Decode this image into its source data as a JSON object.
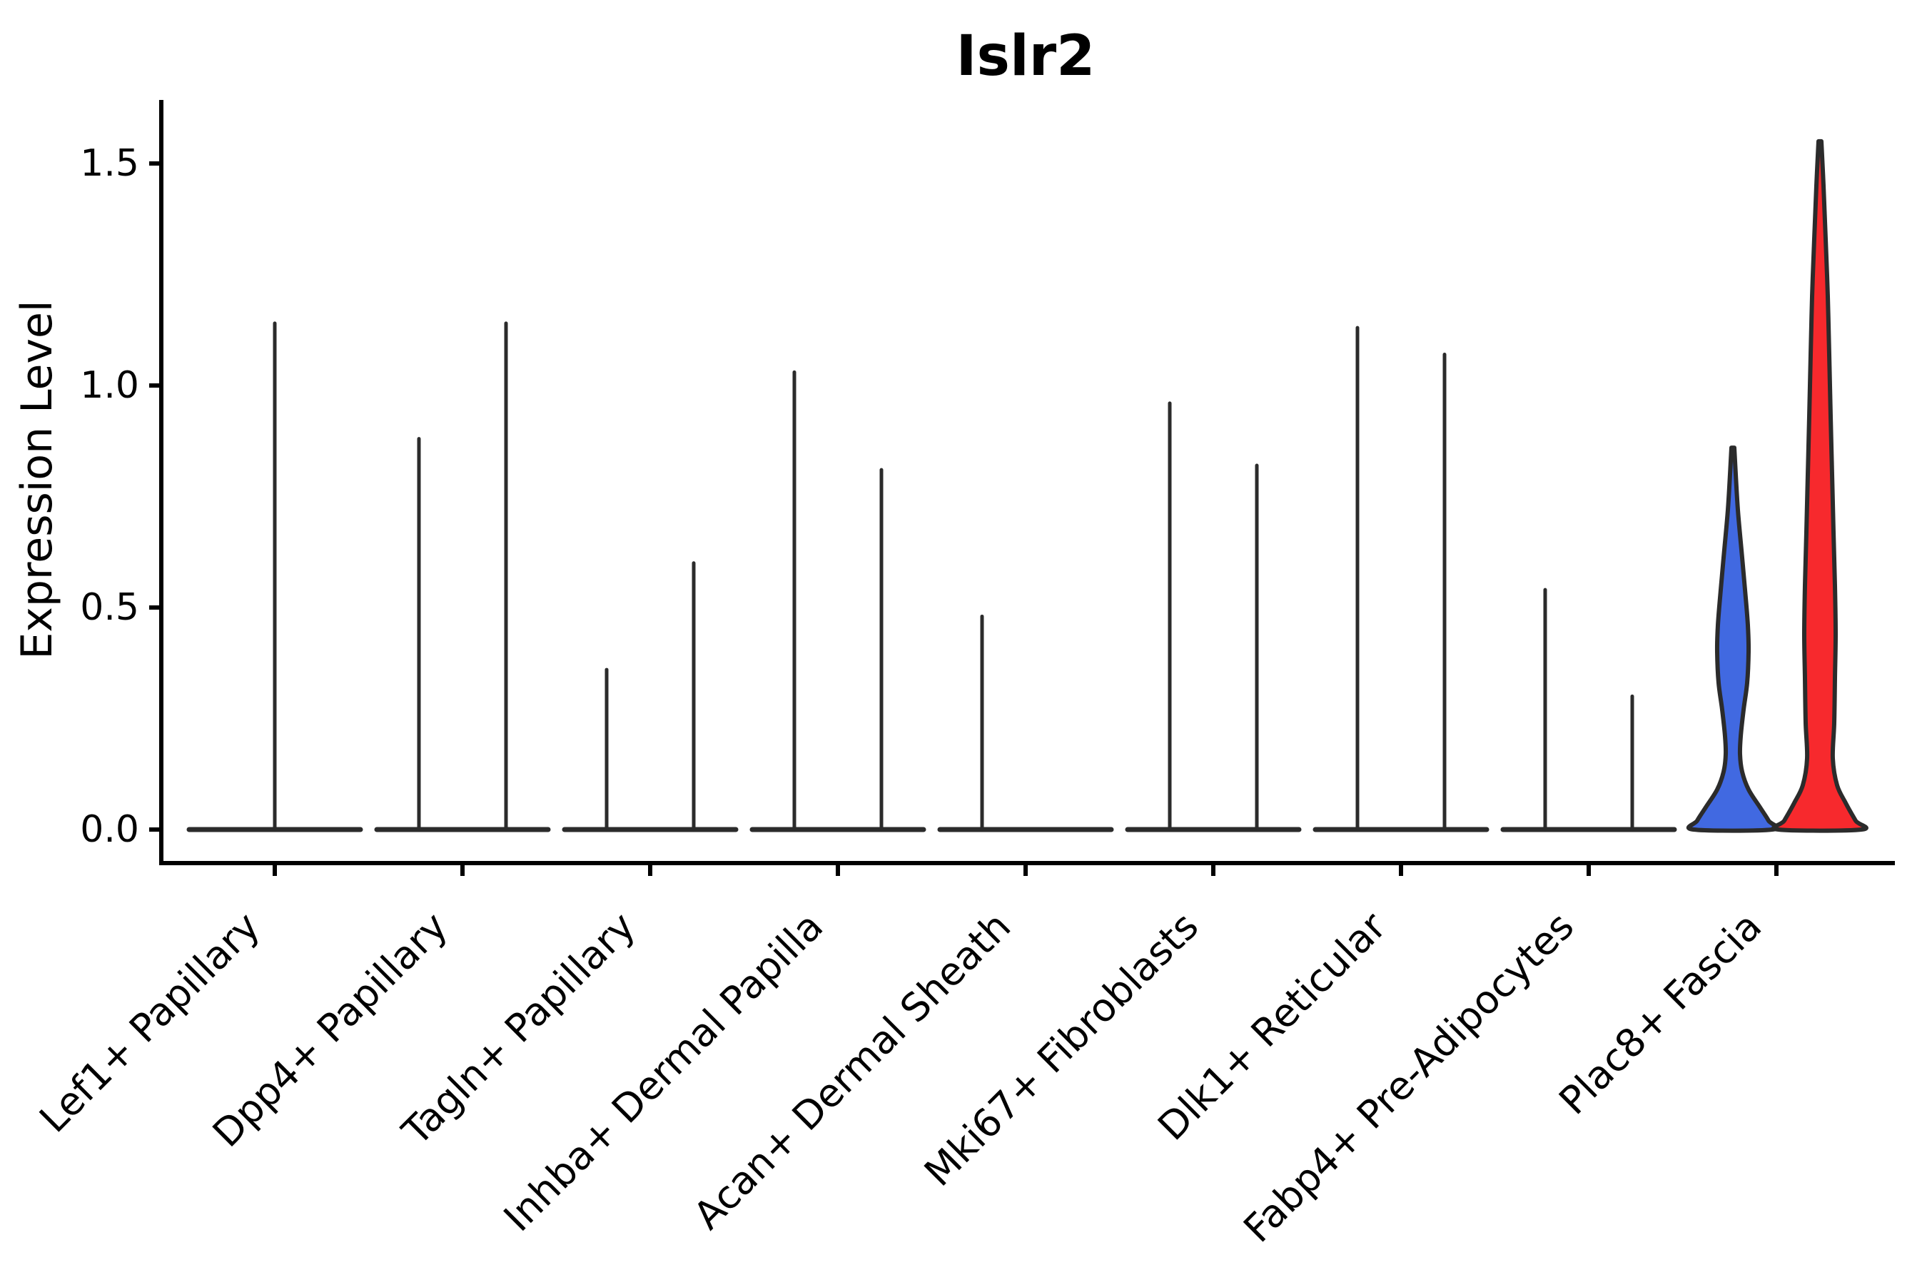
{
  "title": "Islr2",
  "axes": {
    "ylabel": "Expression Level",
    "ytick_labels": [
      "0.0",
      "0.5",
      "1.0",
      "1.5"
    ]
  },
  "colors": {
    "blue_fill": "#4169E1",
    "red_fill": "#F7292D",
    "violin_stroke": "#2b2b2b",
    "axis_color": "#000000"
  },
  "chart_data": {
    "type": "violin",
    "title": "Islr2",
    "xlabel": "",
    "ylabel": "Expression Level",
    "ylim": [
      0,
      1.65
    ],
    "yticks": [
      0,
      0.5,
      1.0,
      1.5
    ],
    "ytick_labels": [
      "0.0",
      "0.5",
      "1.0",
      "1.5"
    ],
    "grid": false,
    "legend": "none",
    "categories": [
      "Lef1+ Papillary",
      "Dpp4+ Papillary",
      "Tagln+ Papillary",
      "Inhba+ Dermal Papilla",
      "Acan+ Dermal Sheath",
      "Mki67+ Fibroblasts",
      "Dlk1+ Reticular",
      "Fabp4+ Pre-Adipocytes",
      "Plac8+ Fascia"
    ],
    "series": [
      {
        "label": "Lef1+ Papillary",
        "base_line": true,
        "violins": [
          {
            "slot": "center",
            "max_expression": 1.14,
            "style": "spike"
          }
        ]
      },
      {
        "label": "Dpp4+ Papillary",
        "base_line": true,
        "violins": [
          {
            "slot": "left",
            "max_expression": 0.88,
            "style": "spike"
          },
          {
            "slot": "right",
            "max_expression": 1.14,
            "style": "spike"
          }
        ]
      },
      {
        "label": "Tagln+ Papillary",
        "base_line": true,
        "violins": [
          {
            "slot": "left",
            "max_expression": 0.36,
            "style": "spike"
          },
          {
            "slot": "right",
            "max_expression": 0.6,
            "style": "spike"
          }
        ]
      },
      {
        "label": "Inhba+ Dermal Papilla",
        "base_line": true,
        "violins": [
          {
            "slot": "left",
            "max_expression": 1.03,
            "style": "spike"
          },
          {
            "slot": "right",
            "max_expression": 0.81,
            "style": "spike"
          }
        ]
      },
      {
        "label": "Acan+ Dermal Sheath",
        "base_line": true,
        "violins": [
          {
            "slot": "left",
            "max_expression": 0.48,
            "style": "spike"
          }
        ]
      },
      {
        "label": "Mki67+ Fibroblasts",
        "base_line": true,
        "violins": [
          {
            "slot": "left",
            "max_expression": 0.96,
            "style": "spike"
          },
          {
            "slot": "right",
            "max_expression": 0.82,
            "style": "spike"
          }
        ]
      },
      {
        "label": "Dlk1+ Reticular",
        "base_line": true,
        "violins": [
          {
            "slot": "left",
            "max_expression": 1.13,
            "style": "spike"
          },
          {
            "slot": "right",
            "max_expression": 1.07,
            "style": "spike"
          }
        ]
      },
      {
        "label": "Fabp4+ Pre-Adipocytes",
        "base_line": true,
        "violins": [
          {
            "slot": "left",
            "max_expression": 0.54,
            "style": "spike"
          },
          {
            "slot": "right",
            "max_expression": 0.3,
            "style": "spike"
          }
        ]
      },
      {
        "label": "Plac8+ Fascia",
        "base_line": false,
        "violins": [
          {
            "slot": "left",
            "max_expression": 0.86,
            "style": "density",
            "fill": "#4169E1",
            "profile": [
              [
                0.86,
                2
              ],
              [
                0.8,
                4
              ],
              [
                0.72,
                7
              ],
              [
                0.63,
                12
              ],
              [
                0.54,
                17
              ],
              [
                0.46,
                21
              ],
              [
                0.4,
                22
              ],
              [
                0.33,
                20
              ],
              [
                0.27,
                15
              ],
              [
                0.21,
                11
              ],
              [
                0.17,
                10
              ],
              [
                0.13,
                13
              ],
              [
                0.09,
                22
              ],
              [
                0.05,
                38
              ],
              [
                0.02,
                50
              ],
              [
                0.0,
                55
              ]
            ]
          },
          {
            "slot": "right",
            "max_expression": 1.55,
            "style": "density",
            "fill": "#F7292D",
            "profile": [
              [
                1.55,
                2
              ],
              [
                1.45,
                5
              ],
              [
                1.33,
                8
              ],
              [
                1.2,
                11
              ],
              [
                1.07,
                13
              ],
              [
                0.93,
                15
              ],
              [
                0.8,
                17
              ],
              [
                0.67,
                19
              ],
              [
                0.55,
                21
              ],
              [
                0.44,
                22
              ],
              [
                0.34,
                21
              ],
              [
                0.24,
                20
              ],
              [
                0.16,
                18
              ],
              [
                0.1,
                24
              ],
              [
                0.06,
                36
              ],
              [
                0.02,
                50
              ],
              [
                0.0,
                58
              ]
            ]
          }
        ]
      }
    ]
  }
}
